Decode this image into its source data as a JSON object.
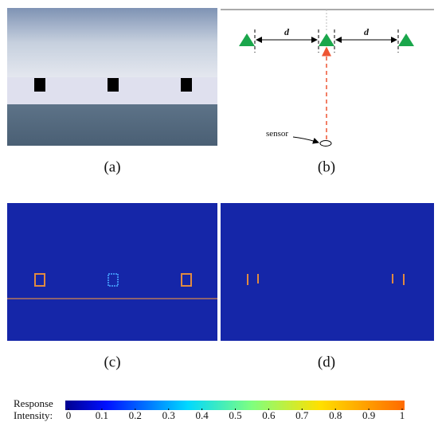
{
  "panels": [
    {
      "label": "(a)"
    },
    {
      "label": "(b)",
      "distance_labels": [
        "d",
        "d"
      ],
      "sensor_label": "sensor"
    },
    {
      "label": "(c)"
    },
    {
      "label": "(d)"
    }
  ],
  "colorbar": {
    "title_lines": [
      "Response",
      "Intensity:"
    ],
    "ticks": [
      0,
      0.1,
      0.2,
      0.3,
      0.4,
      0.5,
      0.6,
      0.7,
      0.8,
      0.9,
      1
    ]
  }
}
